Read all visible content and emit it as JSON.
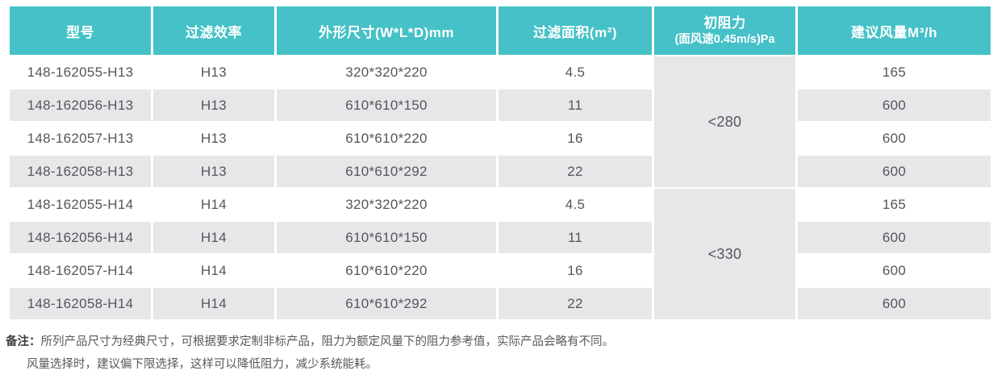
{
  "theme": {
    "header_bg": "#45c1c7",
    "header_text": "#ffffff",
    "row_alt_bg": "#e6e7e9",
    "row_bg": "#ffffff",
    "body_text": "#54565a",
    "note_text": "#595959"
  },
  "spec_table": {
    "headers": {
      "model": "型号",
      "efficiency": "过滤效率",
      "dimensions": "外形尺寸(W*L*D)mm",
      "area": "过滤面积(m²)",
      "resistance_title": "初阻力",
      "resistance_sub": "(面风速0.45m/s)Pa",
      "airflow": "建议风量M³/h"
    },
    "groups": [
      {
        "resistance": "<280",
        "rows": [
          {
            "model": "148-162055-H13",
            "efficiency": "H13",
            "dimensions": "320*320*220",
            "area": "4.5",
            "airflow": "165"
          },
          {
            "model": "148-162056-H13",
            "efficiency": "H13",
            "dimensions": "610*610*150",
            "area": "11",
            "airflow": "600"
          },
          {
            "model": "148-162057-H13",
            "efficiency": "H13",
            "dimensions": "610*610*220",
            "area": "16",
            "airflow": "600"
          },
          {
            "model": "148-162058-H13",
            "efficiency": "H13",
            "dimensions": "610*610*292",
            "area": "22",
            "airflow": "600"
          }
        ]
      },
      {
        "resistance": "<330",
        "rows": [
          {
            "model": "148-162055-H14",
            "efficiency": "H14",
            "dimensions": "320*320*220",
            "area": "4.5",
            "airflow": "165"
          },
          {
            "model": "148-162056-H14",
            "efficiency": "H14",
            "dimensions": "610*610*150",
            "area": "11",
            "airflow": "600"
          },
          {
            "model": "148-162057-H14",
            "efficiency": "H14",
            "dimensions": "610*610*220",
            "area": "16",
            "airflow": "600"
          },
          {
            "model": "148-162058-H14",
            "efficiency": "H14",
            "dimensions": "610*610*292",
            "area": "22",
            "airflow": "600"
          }
        ]
      }
    ]
  },
  "notes": {
    "label": "备注：",
    "line1": "所列产品尺寸为经典尺寸，可根据要求定制非标产品，阻力为额定风量下的阻力参考值，实际产品会略有不同。",
    "line2": "风量选择时，建议偏下限选择，这样可以降低阻力，减少系统能耗。"
  }
}
